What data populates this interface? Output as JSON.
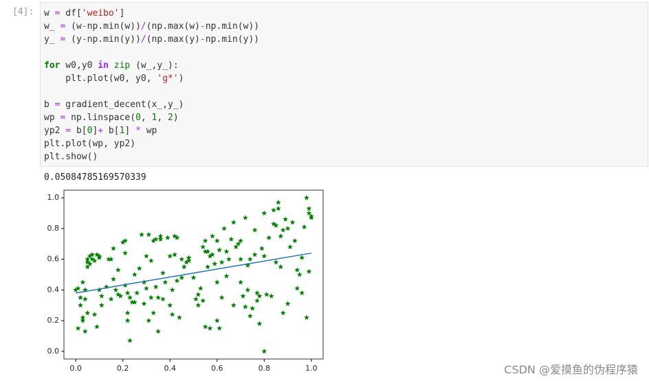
{
  "cell": {
    "prompt": "[4]:",
    "color": "#333333",
    "lines": [
      [
        {
          "t": "w "
        },
        {
          "t": "=",
          "c": "#aa22ff"
        },
        {
          "t": " df["
        },
        {
          "t": "'weibo'",
          "c": "#ba2121"
        },
        {
          "t": "]"
        }
      ],
      [
        {
          "t": "w_ "
        },
        {
          "t": "=",
          "c": "#aa22ff"
        },
        {
          "t": " (w"
        },
        {
          "t": "-",
          "c": "#aa22ff"
        },
        {
          "t": "np.min(w))"
        },
        {
          "t": "/",
          "c": "#aa22ff"
        },
        {
          "t": "(np.max(w)"
        },
        {
          "t": "-",
          "c": "#aa22ff"
        },
        {
          "t": "np.min(w))"
        }
      ],
      [
        {
          "t": "y_ "
        },
        {
          "t": "=",
          "c": "#aa22ff"
        },
        {
          "t": " (y"
        },
        {
          "t": "-",
          "c": "#aa22ff"
        },
        {
          "t": "np.min(y))"
        },
        {
          "t": "/",
          "c": "#aa22ff"
        },
        {
          "t": "(np.max(y)"
        },
        {
          "t": "-",
          "c": "#aa22ff"
        },
        {
          "t": "np.min(y))"
        }
      ],
      [],
      [
        {
          "t": "for",
          "c": "#008000",
          "b": true
        },
        {
          "t": " w0,y0 "
        },
        {
          "t": "in",
          "c": "#aa22ff",
          "b": true
        },
        {
          "t": " "
        },
        {
          "t": "zip",
          "c": "#008000"
        },
        {
          "t": " (w_,y_):"
        }
      ],
      [
        {
          "t": "    plt.plot(w0, y0, "
        },
        {
          "t": "'g*'",
          "c": "#ba2121"
        },
        {
          "t": ")"
        }
      ],
      [],
      [
        {
          "t": "b "
        },
        {
          "t": "=",
          "c": "#aa22ff"
        },
        {
          "t": " gradient_decent(x_,y_)"
        }
      ],
      [
        {
          "t": "wp "
        },
        {
          "t": "=",
          "c": "#aa22ff"
        },
        {
          "t": " np.linspace("
        },
        {
          "t": "0",
          "c": "#008000"
        },
        {
          "t": ", "
        },
        {
          "t": "1",
          "c": "#008000"
        },
        {
          "t": ", "
        },
        {
          "t": "2",
          "c": "#008000"
        },
        {
          "t": ")"
        }
      ],
      [
        {
          "t": "yp2 "
        },
        {
          "t": "=",
          "c": "#aa22ff"
        },
        {
          "t": " b["
        },
        {
          "t": "0",
          "c": "#008000"
        },
        {
          "t": "]"
        },
        {
          "t": "+",
          "c": "#aa22ff"
        },
        {
          "t": " b["
        },
        {
          "t": "1",
          "c": "#008000"
        },
        {
          "t": "] "
        },
        {
          "t": "*",
          "c": "#aa22ff"
        },
        {
          "t": " wp"
        }
      ],
      [
        {
          "t": "plt.plot(wp, yp2)"
        }
      ],
      [
        {
          "t": "plt.show()"
        }
      ]
    ]
  },
  "output": {
    "text": "0.05084785169570339"
  },
  "watermark": "CSDN @爱摸鱼的伪程序猿",
  "chart_data": {
    "type": "scatter",
    "xlim": [
      -0.05,
      1.05
    ],
    "ylim": [
      -0.05,
      1.05
    ],
    "xticks": [
      {
        "value": 0,
        "label": "0.0"
      },
      0.2,
      0.4,
      0.6,
      0.8,
      {
        "value": 1,
        "label": "1.0"
      }
    ],
    "yticks": [
      {
        "value": 0,
        "label": "0.0"
      },
      0.2,
      0.4,
      0.6,
      0.8,
      {
        "value": 1,
        "label": "1.0"
      }
    ],
    "scatter": {
      "color": "#008000",
      "x": [
        0,
        0.01,
        0.01,
        0.02,
        0.02,
        0.03,
        0.03,
        0.03,
        0.04,
        0.04,
        0.04,
        0.05,
        0.05,
        0.05,
        0.05,
        0.06,
        0.06,
        0.07,
        0.07,
        0.08,
        0.08,
        0.09,
        0.09,
        0.1,
        0.1,
        0.1,
        0.11,
        0.11,
        0.13,
        0.14,
        0.15,
        0.15,
        0.16,
        0.16,
        0.17,
        0.18,
        0.18,
        0.19,
        0.2,
        0.21,
        0.21,
        0.21,
        0.22,
        0.22,
        0.22,
        0.23,
        0.23,
        0.24,
        0.25,
        0.25,
        0.26,
        0.27,
        0.28,
        0.29,
        0.29,
        0.3,
        0.3,
        0.31,
        0.31,
        0.32,
        0.32,
        0.33,
        0.33,
        0.34,
        0.34,
        0.35,
        0.35,
        0.36,
        0.36,
        0.37,
        0.37,
        0.38,
        0.39,
        0.4,
        0.4,
        0.41,
        0.41,
        0.42,
        0.42,
        0.43,
        0.43,
        0.44,
        0.45,
        0.45,
        0.46,
        0.47,
        0.48,
        0.48,
        0.5,
        0.51,
        0.52,
        0.52,
        0.53,
        0.54,
        0.54,
        0.55,
        0.55,
        0.55,
        0.56,
        0.56,
        0.57,
        0.57,
        0.58,
        0.58,
        0.59,
        0.6,
        0.6,
        0.6,
        0.61,
        0.61,
        0.62,
        0.62,
        0.63,
        0.64,
        0.64,
        0.65,
        0.66,
        0.67,
        0.67,
        0.68,
        0.69,
        0.7,
        0.7,
        0.7,
        0.71,
        0.72,
        0.72,
        0.73,
        0.73,
        0.74,
        0.74,
        0.75,
        0.76,
        0.76,
        0.77,
        0.77,
        0.78,
        0.78,
        0.79,
        0.8,
        0.8,
        0.8,
        0.81,
        0.82,
        0.83,
        0.84,
        0.84,
        0.85,
        0.85,
        0.86,
        0.86,
        0.87,
        0.87,
        0.88,
        0.88,
        0.89,
        0.9,
        0.9,
        0.91,
        0.92,
        0.93,
        0.94,
        0.94,
        0.95,
        0.96,
        0.96,
        0.97,
        0.98,
        0.98,
        0.99,
        0.99,
        0.99,
        1,
        1
      ],
      "y": [
        0.4,
        0.41,
        0.15,
        0.35,
        0.3,
        0.22,
        0.2,
        0.45,
        0.13,
        0.34,
        0.4,
        0.25,
        0.58,
        0.6,
        0.55,
        0.62,
        0.57,
        0.6,
        0.63,
        0.24,
        0.59,
        0.63,
        0.16,
        0.62,
        0.61,
        0.4,
        0.36,
        0.3,
        0.42,
        0.6,
        0.6,
        0.34,
        0.47,
        0.67,
        0.4,
        0.37,
        0.53,
        0.36,
        0.71,
        0.72,
        0.64,
        0.43,
        0.38,
        0.25,
        0.2,
        0.07,
        0.35,
        0.32,
        0.32,
        0.5,
        0.38,
        0.54,
        0.76,
        0.45,
        0.31,
        0.41,
        0.62,
        0.76,
        0.2,
        0.59,
        0.35,
        0.72,
        0.25,
        0.73,
        0.42,
        0.35,
        0.13,
        0.75,
        0.73,
        0.34,
        0.51,
        0.45,
        0.74,
        0.3,
        0.62,
        0.4,
        0.24,
        0.75,
        0.63,
        0.74,
        0.46,
        0.22,
        0.6,
        0.48,
        0.55,
        0.58,
        0.59,
        0.61,
        0.48,
        0.34,
        0.3,
        0.37,
        0.41,
        0.33,
        0.68,
        0.72,
        0.65,
        0.16,
        0.65,
        0.55,
        0.62,
        0.15,
        0.75,
        0.63,
        0.57,
        0.72,
        0.45,
        0.2,
        0.15,
        0.66,
        0.58,
        0.35,
        0.8,
        0.65,
        0.49,
        0.6,
        0.73,
        0.84,
        0.3,
        0.68,
        0.7,
        0.72,
        0.6,
        0.45,
        0.36,
        0.87,
        0.29,
        0.4,
        0.56,
        0.6,
        0.23,
        0.28,
        0.79,
        0.63,
        0.38,
        0.33,
        0.36,
        0.18,
        0.67,
        0.9,
        0.62,
        0,
        0.37,
        0.74,
        0.36,
        0.83,
        0.92,
        0.82,
        0.58,
        0.97,
        0.93,
        0.75,
        0.55,
        0.79,
        0.25,
        0.86,
        0.8,
        0.31,
        0.68,
        0.84,
        0.72,
        0.41,
        0.53,
        0.5,
        0.38,
        0.61,
        0.81,
        1,
        0.22,
        0.93,
        0.9,
        0.52,
        0.88,
        0.87
      ]
    },
    "line": {
      "color": "#1f77b4",
      "x": [
        0,
        0.5,
        1
      ],
      "y": [
        0.38,
        0.51,
        0.64
      ]
    }
  }
}
